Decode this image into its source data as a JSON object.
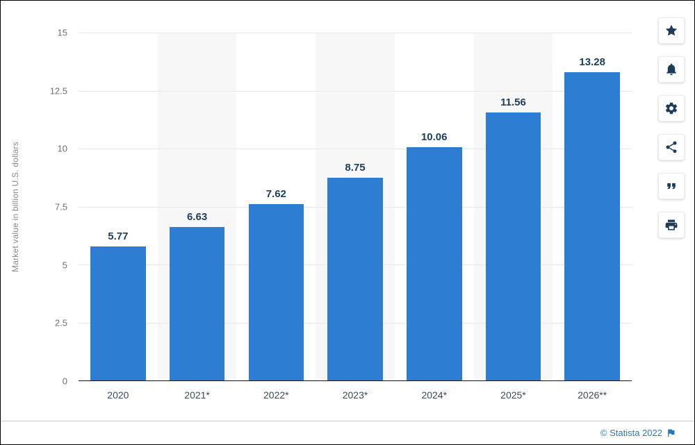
{
  "chart_data": {
    "type": "bar",
    "title": "",
    "categories": [
      "2020",
      "2021*",
      "2022*",
      "2023*",
      "2024*",
      "2025*",
      "2026**"
    ],
    "values": [
      5.77,
      6.63,
      7.62,
      8.75,
      10.06,
      11.56,
      13.28
    ],
    "value_labels": [
      "5.77",
      "6.63",
      "7.62",
      "8.75",
      "10.06",
      "11.56",
      "13.28"
    ],
    "xlabel": "",
    "ylabel": "Market value in billion U.S. dollars",
    "ylim": [
      0,
      15
    ],
    "yticks": [
      "15",
      "12.5",
      "10",
      "7.5",
      "5",
      "2.5",
      "0"
    ],
    "grid": true,
    "legend": "none",
    "bar_color": "#2d7dd2",
    "value_label_color": "#1a3e5f",
    "stripe_color": "#f7f7f7"
  },
  "toolbar": {
    "icons": [
      {
        "name": "star-icon",
        "label": "favorite"
      },
      {
        "name": "bell-icon",
        "label": "notifications"
      },
      {
        "name": "gear-icon",
        "label": "settings"
      },
      {
        "name": "share-icon",
        "label": "share"
      },
      {
        "name": "quote-icon",
        "label": "cite"
      },
      {
        "name": "print-icon",
        "label": "print"
      }
    ]
  },
  "footer": {
    "copyright": "© Statista 2022",
    "flag_icon": "flag-icon"
  },
  "theme": {
    "accent_blue": "#2878be",
    "icon_navy": "#1d3c5a",
    "grid_gray": "#e6e6e6",
    "tick_gray": "#707070"
  }
}
